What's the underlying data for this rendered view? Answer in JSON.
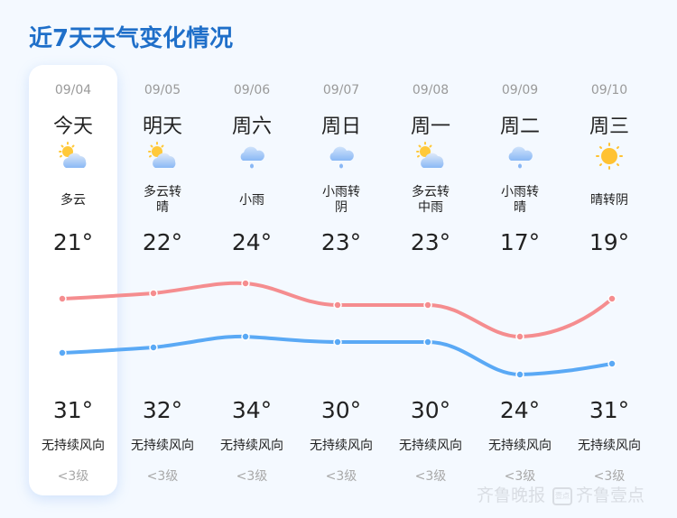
{
  "title": "近7天天气变化情况",
  "colors": {
    "title": "#1f6fc9",
    "upper_line": "#f58d8f",
    "lower_line": "#5aa9f5",
    "today_card": "#ffffff",
    "background": "#f4f9ff"
  },
  "days": [
    {
      "date": "09/04",
      "day": "今天",
      "icon": "partly-cloudy-icon",
      "cond1": "多云",
      "cond2": "",
      "upper": "21°",
      "lower": "31°",
      "wind": "无持续风向",
      "level": "<3级"
    },
    {
      "date": "09/05",
      "day": "明天",
      "icon": "partly-cloudy-icon",
      "cond1": "多云转",
      "cond2": "晴",
      "upper": "22°",
      "lower": "32°",
      "wind": "无持续风向",
      "level": "<3级"
    },
    {
      "date": "09/06",
      "day": "周六",
      "icon": "light-rain-icon",
      "cond1": "小雨",
      "cond2": "",
      "upper": "24°",
      "lower": "34°",
      "wind": "无持续风向",
      "level": "<3级"
    },
    {
      "date": "09/07",
      "day": "周日",
      "icon": "light-rain-icon",
      "cond1": "小雨转",
      "cond2": "阴",
      "upper": "23°",
      "lower": "30°",
      "wind": "无持续风向",
      "level": "<3级"
    },
    {
      "date": "09/08",
      "day": "周一",
      "icon": "partly-cloudy-icon",
      "cond1": "多云转",
      "cond2": "中雨",
      "upper": "23°",
      "lower": "30°",
      "wind": "无持续风向",
      "level": "<3级"
    },
    {
      "date": "09/09",
      "day": "周二",
      "icon": "light-rain-icon",
      "cond1": "小雨转",
      "cond2": "晴",
      "upper": "17°",
      "lower": "24°",
      "wind": "无持续风向",
      "level": "<3级"
    },
    {
      "date": "09/10",
      "day": "周三",
      "icon": "sunny-icon",
      "cond1": "晴转阴",
      "cond2": "",
      "upper": "19°",
      "lower": "31°",
      "wind": "无持续风向",
      "level": "<3级"
    }
  ],
  "watermark": {
    "brand1": "齐鲁晚报",
    "brand2": "齐鲁壹点",
    "badge": "壹点"
  },
  "chart_data": {
    "type": "line",
    "title": "近7天天气变化情况",
    "categories": [
      "09/04",
      "09/05",
      "09/06",
      "09/07",
      "09/08",
      "09/09",
      "09/10"
    ],
    "series": [
      {
        "name": "upper (red)",
        "values": [
          21,
          22,
          24,
          23,
          23,
          17,
          19
        ]
      },
      {
        "name": "lower (blue)",
        "values": [
          31,
          32,
          34,
          30,
          30,
          24,
          31
        ]
      }
    ],
    "xlabel": "",
    "ylabel": "",
    "grid": false,
    "legend": "none"
  }
}
